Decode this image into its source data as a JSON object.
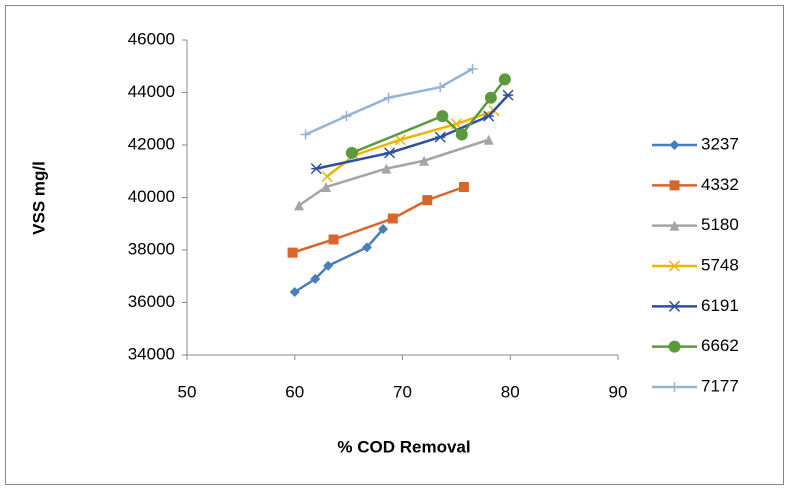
{
  "chart_data": {
    "type": "line",
    "xlabel": "% COD Removal",
    "ylabel": "VSS mg/l",
    "xlim": [
      50,
      90
    ],
    "xticks": [
      50,
      60,
      70,
      80,
      90
    ],
    "ylim": [
      34000,
      46000
    ],
    "yticks": [
      34000,
      36000,
      38000,
      40000,
      42000,
      44000,
      46000
    ],
    "legend": "right",
    "series": [
      {
        "name": "3237",
        "color": "#4a7ebb",
        "marker": "diamond",
        "x": [
          60.0,
          61.9,
          63.1,
          66.7,
          68.2
        ],
        "values": [
          36400,
          36900,
          37400,
          38100,
          38800
        ]
      },
      {
        "name": "4332",
        "color": "#d9652b",
        "marker": "square",
        "x": [
          59.8,
          63.6,
          69.1,
          72.3,
          75.7
        ],
        "values": [
          37900,
          38400,
          39200,
          39900,
          40400
        ]
      },
      {
        "name": "5180",
        "color": "#a5a5a5",
        "marker": "triangle",
        "x": [
          60.4,
          62.9,
          68.5,
          72.0,
          78.0
        ],
        "values": [
          39700,
          40400,
          41100,
          41400,
          42200
        ]
      },
      {
        "name": "5748",
        "color": "#f0b400",
        "marker": "x",
        "x": [
          63.0,
          65.5,
          69.8,
          75.0,
          78.5
        ],
        "values": [
          40800,
          41600,
          42200,
          42800,
          43300
        ]
      },
      {
        "name": "6191",
        "color": "#2e4fa0",
        "marker": "star",
        "x": [
          62.0,
          68.8,
          73.5,
          78.0,
          79.8
        ],
        "values": [
          41100,
          41700,
          42300,
          43100,
          43900
        ]
      },
      {
        "name": "6662",
        "color": "#5b9a3a",
        "marker": "circle",
        "x": [
          65.3,
          73.7,
          75.5,
          78.2,
          79.5
        ],
        "values": [
          41700,
          43100,
          42400,
          43800,
          44500
        ]
      },
      {
        "name": "7177",
        "color": "#95b3d7",
        "marker": "plus",
        "x": [
          61.0,
          64.8,
          68.7,
          73.5,
          76.5
        ],
        "values": [
          42400,
          43100,
          43800,
          44200,
          44900
        ]
      }
    ]
  }
}
